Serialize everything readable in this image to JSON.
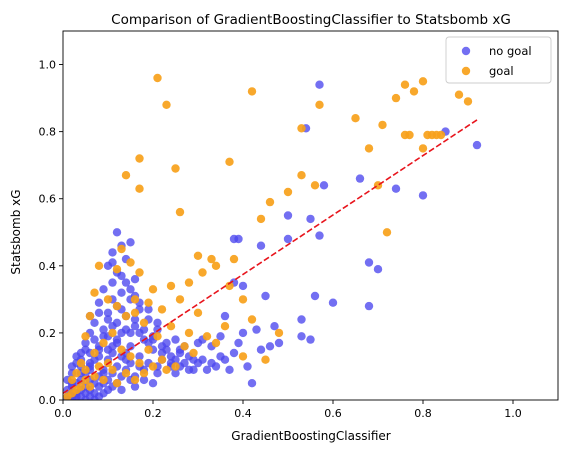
{
  "chart_data": {
    "type": "scatter",
    "title": "Comparison of GradientBoostingClassifier to Statsbomb xG",
    "xlabel": "GradientBoostingClassifier",
    "ylabel": "Statsbomb xG",
    "xlim": [
      0,
      1.1
    ],
    "ylim": [
      0,
      1.1
    ],
    "xticks": [
      "0.0",
      "0.2",
      "0.4",
      "0.6",
      "0.8",
      "1.0"
    ],
    "yticks": [
      "0.0",
      "0.2",
      "0.4",
      "0.6",
      "0.8",
      "1.0"
    ],
    "grid": false,
    "legend_position": "top-right",
    "series": [
      {
        "name": "no goal",
        "color": "#4b46ee",
        "points": [
          [
            0.57,
            0.94
          ],
          [
            0.54,
            0.81
          ],
          [
            0.85,
            0.8
          ],
          [
            0.92,
            0.76
          ],
          [
            0.58,
            0.64
          ],
          [
            0.66,
            0.66
          ],
          [
            0.74,
            0.63
          ],
          [
            0.8,
            0.61
          ],
          [
            0.55,
            0.54
          ],
          [
            0.5,
            0.55
          ],
          [
            0.57,
            0.49
          ],
          [
            0.5,
            0.48
          ],
          [
            0.39,
            0.48
          ],
          [
            0.38,
            0.48
          ],
          [
            0.44,
            0.46
          ],
          [
            0.68,
            0.41
          ],
          [
            0.7,
            0.39
          ],
          [
            0.4,
            0.34
          ],
          [
            0.38,
            0.35
          ],
          [
            0.45,
            0.31
          ],
          [
            0.56,
            0.31
          ],
          [
            0.6,
            0.29
          ],
          [
            0.68,
            0.28
          ],
          [
            0.53,
            0.24
          ],
          [
            0.47,
            0.22
          ],
          [
            0.36,
            0.25
          ],
          [
            0.4,
            0.2
          ],
          [
            0.43,
            0.21
          ],
          [
            0.48,
            0.17
          ],
          [
            0.46,
            0.16
          ],
          [
            0.55,
            0.18
          ],
          [
            0.53,
            0.19
          ],
          [
            0.33,
            0.16
          ],
          [
            0.3,
            0.17
          ],
          [
            0.36,
            0.12
          ],
          [
            0.38,
            0.14
          ],
          [
            0.42,
            0.05
          ],
          [
            0.34,
            0.1
          ],
          [
            0.28,
            0.13
          ],
          [
            0.26,
            0.15
          ],
          [
            0.3,
            0.11
          ],
          [
            0.32,
            0.09
          ],
          [
            0.25,
            0.08
          ],
          [
            0.12,
            0.5
          ],
          [
            0.15,
            0.47
          ],
          [
            0.13,
            0.46
          ],
          [
            0.11,
            0.44
          ],
          [
            0.14,
            0.42
          ],
          [
            0.1,
            0.4
          ],
          [
            0.12,
            0.38
          ],
          [
            0.16,
            0.36
          ],
          [
            0.11,
            0.35
          ],
          [
            0.09,
            0.33
          ],
          [
            0.13,
            0.32
          ],
          [
            0.15,
            0.3
          ],
          [
            0.08,
            0.29
          ],
          [
            0.12,
            0.28
          ],
          [
            0.17,
            0.27
          ],
          [
            0.1,
            0.26
          ],
          [
            0.14,
            0.25
          ],
          [
            0.19,
            0.24
          ],
          [
            0.07,
            0.23
          ],
          [
            0.11,
            0.22
          ],
          [
            0.16,
            0.22
          ],
          [
            0.21,
            0.21
          ],
          [
            0.06,
            0.2
          ],
          [
            0.13,
            0.2
          ],
          [
            0.09,
            0.19
          ],
          [
            0.18,
            0.18
          ],
          [
            0.23,
            0.17
          ],
          [
            0.05,
            0.17
          ],
          [
            0.11,
            0.16
          ],
          [
            0.15,
            0.16
          ],
          [
            0.2,
            0.15
          ],
          [
            0.08,
            0.15
          ],
          [
            0.26,
            0.14
          ],
          [
            0.04,
            0.14
          ],
          [
            0.13,
            0.13
          ],
          [
            0.17,
            0.13
          ],
          [
            0.22,
            0.12
          ],
          [
            0.1,
            0.12
          ],
          [
            0.07,
            0.12
          ],
          [
            0.03,
            0.11
          ],
          [
            0.15,
            0.11
          ],
          [
            0.19,
            0.11
          ],
          [
            0.12,
            0.1
          ],
          [
            0.24,
            0.1
          ],
          [
            0.06,
            0.1
          ],
          [
            0.09,
            0.09
          ],
          [
            0.14,
            0.09
          ],
          [
            0.18,
            0.09
          ],
          [
            0.21,
            0.08
          ],
          [
            0.02,
            0.08
          ],
          [
            0.05,
            0.08
          ],
          [
            0.11,
            0.08
          ],
          [
            0.16,
            0.07
          ],
          [
            0.08,
            0.07
          ],
          [
            0.13,
            0.07
          ],
          [
            0.04,
            0.06
          ],
          [
            0.1,
            0.06
          ],
          [
            0.06,
            0.06
          ],
          [
            0.15,
            0.06
          ],
          [
            0.12,
            0.05
          ],
          [
            0.03,
            0.05
          ],
          [
            0.07,
            0.05
          ],
          [
            0.09,
            0.05
          ],
          [
            0.02,
            0.04
          ],
          [
            0.05,
            0.04
          ],
          [
            0.11,
            0.04
          ],
          [
            0.08,
            0.04
          ],
          [
            0.04,
            0.03
          ],
          [
            0.06,
            0.03
          ],
          [
            0.01,
            0.03
          ],
          [
            0.1,
            0.03
          ],
          [
            0.03,
            0.02
          ],
          [
            0.07,
            0.02
          ],
          [
            0.05,
            0.02
          ],
          [
            0.02,
            0.02
          ],
          [
            0.09,
            0.02
          ],
          [
            0.01,
            0.01
          ],
          [
            0.04,
            0.01
          ],
          [
            0.06,
            0.01
          ],
          [
            0.03,
            0.01
          ],
          [
            0.02,
            0.01
          ],
          [
            0.08,
            0.01
          ],
          [
            0.05,
            0.0
          ],
          [
            0.01,
            0.0
          ],
          [
            0.03,
            0.0
          ],
          [
            0.07,
            0.0
          ],
          [
            0.02,
            0.0
          ],
          [
            0.14,
            0.14
          ],
          [
            0.12,
            0.17
          ],
          [
            0.1,
            0.19
          ],
          [
            0.17,
            0.2
          ],
          [
            0.2,
            0.19
          ],
          [
            0.22,
            0.16
          ],
          [
            0.24,
            0.13
          ],
          [
            0.27,
            0.11
          ],
          [
            0.29,
            0.09
          ],
          [
            0.31,
            0.12
          ],
          [
            0.35,
            0.13
          ],
          [
            0.18,
            0.06
          ],
          [
            0.2,
            0.05
          ],
          [
            0.16,
            0.04
          ],
          [
            0.13,
            0.03
          ],
          [
            0.09,
            0.08
          ],
          [
            0.06,
            0.09
          ],
          [
            0.04,
            0.1
          ],
          [
            0.03,
            0.13
          ],
          [
            0.05,
            0.15
          ],
          [
            0.07,
            0.18
          ],
          [
            0.09,
            0.21
          ],
          [
            0.14,
            0.35
          ],
          [
            0.16,
            0.31
          ],
          [
            0.11,
            0.3
          ],
          [
            0.13,
            0.27
          ],
          [
            0.1,
            0.24
          ],
          [
            0.08,
            0.26
          ],
          [
            0.06,
            0.25
          ],
          [
            0.12,
            0.23
          ],
          [
            0.15,
            0.2
          ],
          [
            0.19,
            0.17
          ],
          [
            0.23,
            0.15
          ],
          [
            0.25,
            0.12
          ],
          [
            0.28,
            0.09
          ],
          [
            0.21,
            0.1
          ],
          [
            0.17,
            0.1
          ],
          [
            0.14,
            0.12
          ],
          [
            0.11,
            0.14
          ],
          [
            0.08,
            0.16
          ],
          [
            0.06,
            0.14
          ],
          [
            0.04,
            0.12
          ],
          [
            0.02,
            0.1
          ],
          [
            0.01,
            0.06
          ],
          [
            0.02,
            0.05
          ],
          [
            0.04,
            0.08
          ],
          [
            0.06,
            0.11
          ],
          [
            0.08,
            0.13
          ],
          [
            0.1,
            0.15
          ],
          [
            0.12,
            0.18
          ],
          [
            0.14,
            0.21
          ],
          [
            0.16,
            0.24
          ],
          [
            0.18,
            0.21
          ],
          [
            0.2,
            0.18
          ],
          [
            0.22,
            0.14
          ],
          [
            0.24,
            0.11
          ],
          [
            0.26,
            0.1
          ],
          [
            0.29,
            0.12
          ],
          [
            0.33,
            0.11
          ],
          [
            0.37,
            0.09
          ],
          [
            0.41,
            0.1
          ],
          [
            0.44,
            0.15
          ],
          [
            0.39,
            0.17
          ],
          [
            0.35,
            0.19
          ],
          [
            0.31,
            0.18
          ],
          [
            0.27,
            0.16
          ],
          [
            0.25,
            0.18
          ],
          [
            0.21,
            0.23
          ],
          [
            0.19,
            0.27
          ],
          [
            0.17,
            0.29
          ],
          [
            0.15,
            0.33
          ],
          [
            0.13,
            0.37
          ],
          [
            0.11,
            0.41
          ]
        ]
      },
      {
        "name": "goal",
        "color": "#f7a11a",
        "points": [
          [
            0.21,
            0.96
          ],
          [
            0.23,
            0.88
          ],
          [
            0.42,
            0.92
          ],
          [
            0.17,
            0.72
          ],
          [
            0.14,
            0.67
          ],
          [
            0.17,
            0.63
          ],
          [
            0.25,
            0.69
          ],
          [
            0.26,
            0.56
          ],
          [
            0.37,
            0.71
          ],
          [
            0.46,
            0.59
          ],
          [
            0.5,
            0.62
          ],
          [
            0.53,
            0.67
          ],
          [
            0.56,
            0.64
          ],
          [
            0.53,
            0.81
          ],
          [
            0.57,
            0.88
          ],
          [
            0.65,
            0.84
          ],
          [
            0.68,
            0.75
          ],
          [
            0.7,
            0.64
          ],
          [
            0.71,
            0.82
          ],
          [
            0.72,
            0.5
          ],
          [
            0.74,
            0.9
          ],
          [
            0.76,
            0.94
          ],
          [
            0.78,
            0.92
          ],
          [
            0.8,
            0.95
          ],
          [
            0.76,
            0.79
          ],
          [
            0.77,
            0.79
          ],
          [
            0.81,
            0.79
          ],
          [
            0.82,
            0.79
          ],
          [
            0.83,
            0.79
          ],
          [
            0.84,
            0.79
          ],
          [
            0.8,
            0.75
          ],
          [
            0.88,
            0.91
          ],
          [
            0.9,
            0.89
          ],
          [
            0.44,
            0.54
          ],
          [
            0.38,
            0.42
          ],
          [
            0.33,
            0.42
          ],
          [
            0.31,
            0.38
          ],
          [
            0.28,
            0.35
          ],
          [
            0.3,
            0.43
          ],
          [
            0.34,
            0.4
          ],
          [
            0.37,
            0.34
          ],
          [
            0.4,
            0.3
          ],
          [
            0.42,
            0.24
          ],
          [
            0.36,
            0.22
          ],
          [
            0.32,
            0.19
          ],
          [
            0.28,
            0.2
          ],
          [
            0.24,
            0.22
          ],
          [
            0.21,
            0.19
          ],
          [
            0.18,
            0.23
          ],
          [
            0.16,
            0.3
          ],
          [
            0.17,
            0.38
          ],
          [
            0.15,
            0.41
          ],
          [
            0.13,
            0.45
          ],
          [
            0.12,
            0.39
          ],
          [
            0.16,
            0.26
          ],
          [
            0.19,
            0.29
          ],
          [
            0.2,
            0.33
          ],
          [
            0.08,
            0.4
          ],
          [
            0.07,
            0.32
          ],
          [
            0.1,
            0.3
          ],
          [
            0.12,
            0.28
          ],
          [
            0.14,
            0.25
          ],
          [
            0.11,
            0.2
          ],
          [
            0.09,
            0.17
          ],
          [
            0.13,
            0.15
          ],
          [
            0.15,
            0.13
          ],
          [
            0.17,
            0.11
          ],
          [
            0.19,
            0.15
          ],
          [
            0.22,
            0.12
          ],
          [
            0.25,
            0.1
          ],
          [
            0.27,
            0.16
          ],
          [
            0.29,
            0.14
          ],
          [
            0.06,
            0.25
          ],
          [
            0.05,
            0.19
          ],
          [
            0.07,
            0.14
          ],
          [
            0.04,
            0.11
          ],
          [
            0.03,
            0.08
          ],
          [
            0.05,
            0.06
          ],
          [
            0.07,
            0.07
          ],
          [
            0.09,
            0.06
          ],
          [
            0.11,
            0.09
          ],
          [
            0.02,
            0.06
          ],
          [
            0.04,
            0.04
          ],
          [
            0.06,
            0.04
          ],
          [
            0.08,
            0.1
          ],
          [
            0.1,
            0.11
          ],
          [
            0.03,
            0.03
          ],
          [
            0.02,
            0.02
          ],
          [
            0.01,
            0.01
          ],
          [
            0.05,
            0.09
          ],
          [
            0.12,
            0.05
          ],
          [
            0.14,
            0.08
          ],
          [
            0.16,
            0.06
          ],
          [
            0.18,
            0.08
          ],
          [
            0.2,
            0.1
          ],
          [
            0.23,
            0.09
          ],
          [
            0.34,
            0.17
          ],
          [
            0.3,
            0.26
          ],
          [
            0.26,
            0.3
          ],
          [
            0.22,
            0.27
          ],
          [
            0.24,
            0.34
          ],
          [
            0.48,
            0.2
          ],
          [
            0.45,
            0.12
          ],
          [
            0.4,
            0.13
          ]
        ]
      }
    ],
    "reference_line": {
      "color": "#e8141c",
      "style": "dashed",
      "points": [
        [
          0.0,
          0.02
        ],
        [
          0.92,
          0.835
        ]
      ]
    }
  }
}
